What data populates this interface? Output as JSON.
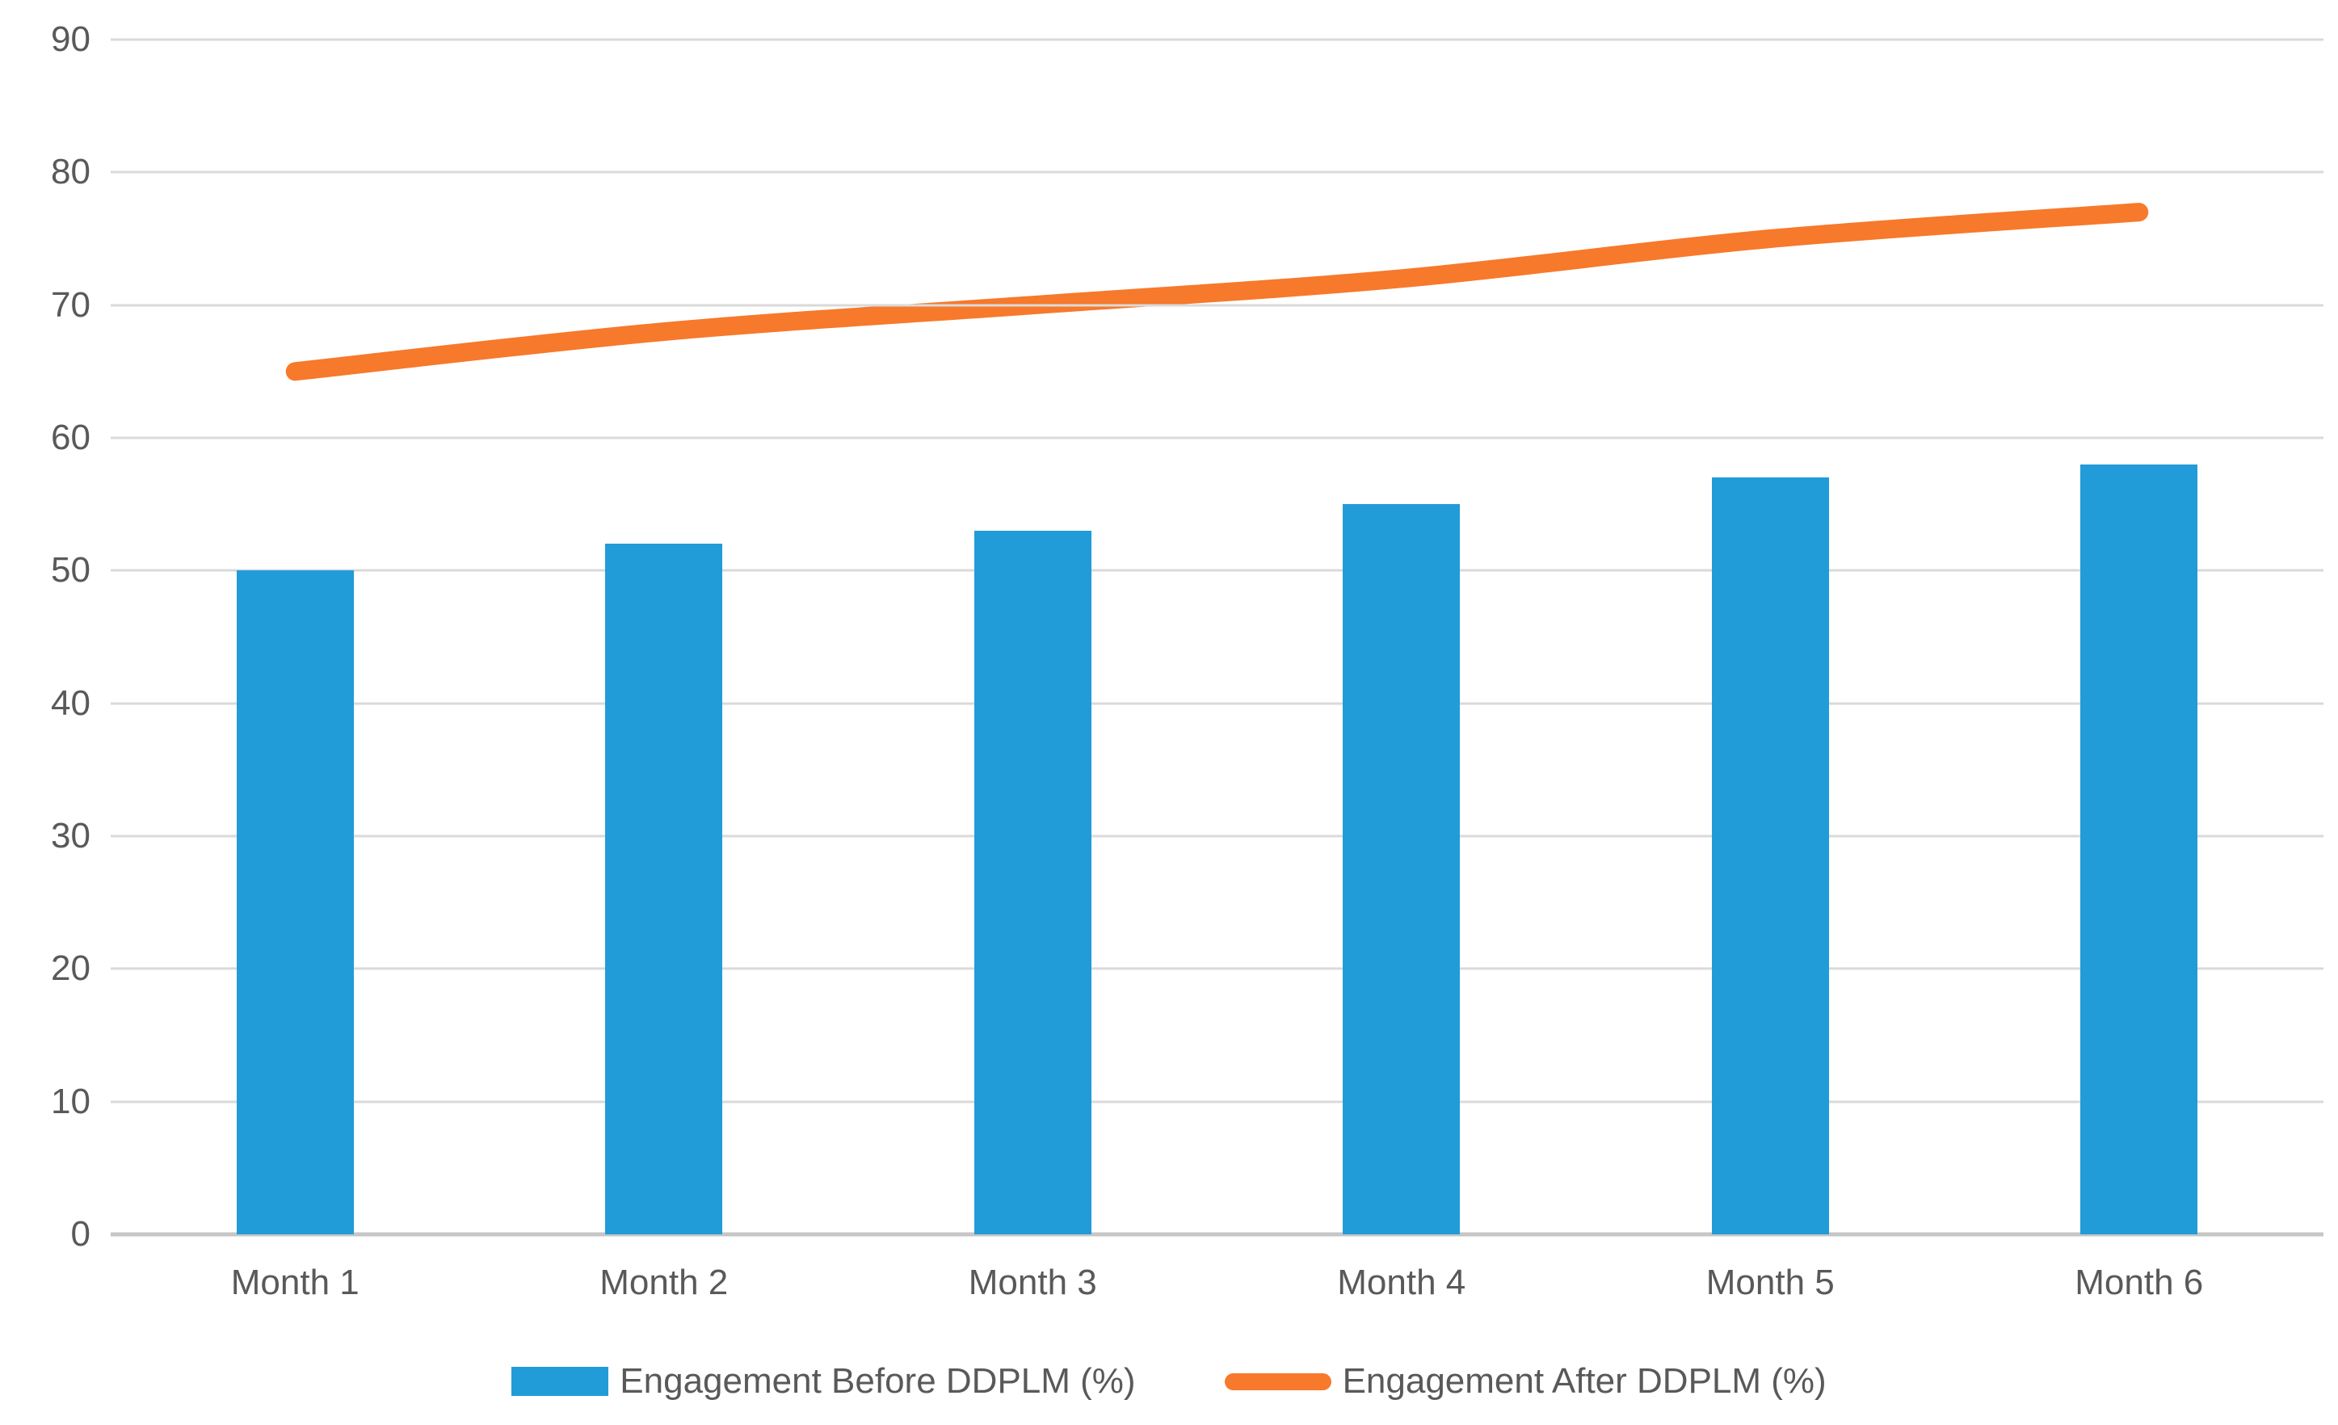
{
  "chart_data": {
    "type": "combo",
    "categories": [
      "Month 1",
      "Month 2",
      "Month 3",
      "Month 4",
      "Month 5",
      "Month 6"
    ],
    "series": [
      {
        "name": "Engagement Before DDPLM (%)",
        "type": "bar",
        "color": "#219CD8",
        "values": [
          50,
          52,
          53,
          55,
          57,
          58
        ]
      },
      {
        "name": "Engagement After DDPLM (%)",
        "type": "line",
        "color": "#F7792B",
        "values": [
          65,
          68,
          70,
          72,
          75,
          77
        ]
      }
    ],
    "title": "",
    "xlabel": "",
    "ylabel": "",
    "ylim": [
      0,
      90
    ],
    "yticks": [
      "0",
      "10",
      "20",
      "30",
      "40",
      "50",
      "60",
      "70",
      "80",
      "90"
    ],
    "grid": true,
    "legend_position": "bottom"
  },
  "colors": {
    "gridline": "#DADADA",
    "axis_line": "#C6C6C6",
    "tick_text": "#595959",
    "bar_fill": "#219CD8",
    "line_stroke": "#F7792B",
    "background": "#FFFFFF"
  },
  "legend": {
    "before_label": "Engagement Before DDPLM (%)",
    "after_label": "Engagement After DDPLM (%)"
  }
}
